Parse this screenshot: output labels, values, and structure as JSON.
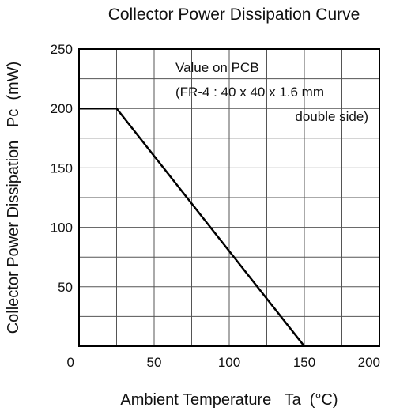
{
  "chart_data": {
    "type": "line",
    "title": "Collector Power Dissipation Curve",
    "xlabel": "Ambient Temperature   Ta  (°C)",
    "ylabel": "Collector Power Dissipation   Pc  (mW)",
    "xlim": [
      0,
      200
    ],
    "ylim": [
      0,
      250
    ],
    "x_major_ticks": [
      0,
      50,
      100,
      150,
      200
    ],
    "x_tick_labels": [
      "0",
      "50",
      "100",
      "150",
      "200"
    ],
    "y_major_ticks": [
      0,
      50,
      100,
      150,
      200,
      250
    ],
    "y_tick_labels": [
      "",
      "50",
      "100",
      "150",
      "200",
      "250"
    ],
    "grid": true,
    "x_grid_step": 25,
    "y_grid_step": 25,
    "annotation_lines": [
      "Value on PCB",
      "(FR-4 : 40 x 40 x 1.6 mm",
      "double side)"
    ],
    "series": [
      {
        "x": [
          0,
          25,
          150
        ],
        "y": [
          200,
          200,
          0
        ]
      }
    ]
  }
}
